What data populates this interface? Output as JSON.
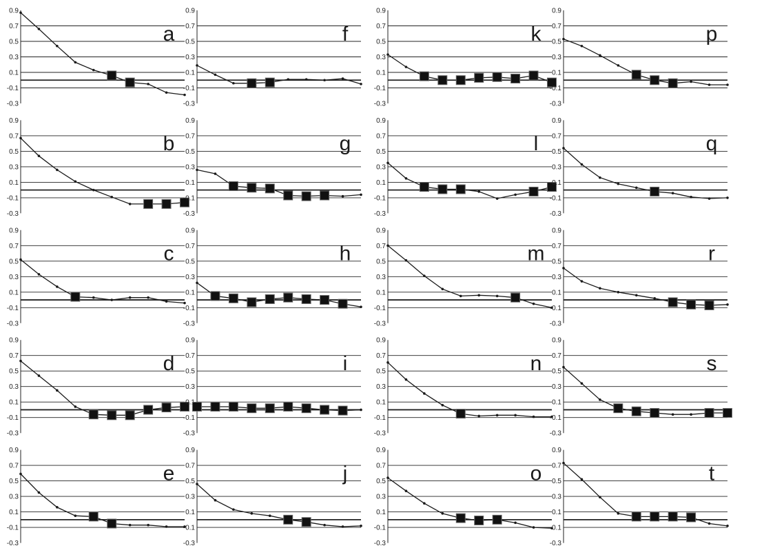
{
  "chart_data": {
    "type": "line",
    "ylim": [
      -0.3,
      0.9
    ],
    "yticks": [
      0.9,
      0.7,
      0.5,
      0.3,
      0.1,
      -0.1,
      -0.3
    ],
    "ytick_labels": [
      "0.9",
      "0.7",
      "0.5",
      "0.3",
      "0.1",
      "-0.1",
      "-0.3"
    ],
    "grid": true,
    "colors": {
      "line": "#1a1a1a",
      "marker": "#111111",
      "grid": "#222222"
    },
    "panels": [
      {
        "label": "a",
        "values": [
          0.87,
          0.66,
          0.44,
          0.23,
          0.13,
          0.06,
          -0.03,
          -0.05,
          -0.16,
          -0.19
        ],
        "highlighted": [
          5,
          6
        ]
      },
      {
        "label": "b",
        "values": [
          0.67,
          0.44,
          0.26,
          0.11,
          0.0,
          -0.09,
          -0.18,
          -0.18,
          -0.18,
          -0.16
        ],
        "highlighted": [
          7,
          8,
          9
        ]
      },
      {
        "label": "c",
        "values": [
          0.52,
          0.33,
          0.17,
          0.04,
          0.03,
          0.0,
          0.03,
          0.03,
          -0.02,
          -0.04
        ],
        "highlighted": [
          3
        ]
      },
      {
        "label": "d",
        "values": [
          0.63,
          0.44,
          0.25,
          0.04,
          -0.06,
          -0.07,
          -0.07,
          0.0,
          0.03,
          0.04
        ],
        "highlighted": [
          4,
          5,
          6,
          7,
          8,
          9
        ]
      },
      {
        "label": "e",
        "values": [
          0.59,
          0.35,
          0.16,
          0.05,
          0.04,
          -0.05,
          -0.07,
          -0.07,
          -0.09,
          -0.09
        ],
        "highlighted": [
          4,
          5
        ]
      },
      {
        "label": "f",
        "values": [
          0.19,
          0.07,
          -0.04,
          -0.04,
          -0.03,
          0.01,
          0.01,
          0.0,
          0.02,
          -0.05
        ],
        "highlighted": [
          3,
          4
        ]
      },
      {
        "label": "g",
        "values": [
          0.26,
          0.21,
          0.05,
          0.03,
          0.02,
          -0.07,
          -0.08,
          -0.07,
          -0.08,
          -0.06
        ],
        "highlighted": [
          2,
          3,
          4,
          5,
          6,
          7
        ]
      },
      {
        "label": "h",
        "values": [
          0.22,
          0.05,
          0.02,
          -0.03,
          0.01,
          0.03,
          0.01,
          0.0,
          -0.05,
          -0.09
        ],
        "highlighted": [
          1,
          2,
          3,
          4,
          5,
          6,
          7,
          8
        ]
      },
      {
        "label": "i",
        "values": [
          0.04,
          0.04,
          0.04,
          0.02,
          0.02,
          0.04,
          0.02,
          0.0,
          -0.01,
          0.0
        ],
        "highlighted": [
          0,
          1,
          2,
          3,
          4,
          5,
          6,
          7,
          8
        ]
      },
      {
        "label": "j",
        "values": [
          0.46,
          0.25,
          0.13,
          0.08,
          0.05,
          0.0,
          -0.03,
          -0.07,
          -0.09,
          -0.08
        ],
        "highlighted": [
          5,
          6
        ]
      },
      {
        "label": "k",
        "values": [
          0.33,
          0.17,
          0.05,
          0.0,
          0.0,
          0.03,
          0.04,
          0.02,
          0.06,
          -0.03
        ],
        "highlighted": [
          2,
          3,
          4,
          5,
          6,
          7,
          8,
          9
        ]
      },
      {
        "label": "l",
        "values": [
          0.35,
          0.15,
          0.04,
          0.01,
          0.01,
          -0.02,
          -0.11,
          -0.06,
          -0.02,
          0.04
        ],
        "highlighted": [
          2,
          3,
          4,
          8,
          9
        ]
      },
      {
        "label": "m",
        "values": [
          0.7,
          0.51,
          0.31,
          0.14,
          0.05,
          0.06,
          0.05,
          0.03,
          -0.05,
          -0.1
        ],
        "highlighted": [
          7
        ]
      },
      {
        "label": "n",
        "values": [
          0.61,
          0.39,
          0.21,
          0.06,
          -0.05,
          -0.08,
          -0.07,
          -0.07,
          -0.09,
          -0.09
        ],
        "highlighted": [
          4
        ]
      },
      {
        "label": "o",
        "values": [
          0.54,
          0.37,
          0.21,
          0.08,
          0.02,
          -0.01,
          0.0,
          -0.04,
          -0.1,
          -0.11
        ],
        "highlighted": [
          4,
          5,
          6
        ]
      },
      {
        "label": "p",
        "values": [
          0.53,
          0.44,
          0.32,
          0.19,
          0.07,
          0.0,
          -0.04,
          -0.02,
          -0.06,
          -0.06
        ],
        "highlighted": [
          4,
          5,
          6
        ]
      },
      {
        "label": "q",
        "values": [
          0.54,
          0.33,
          0.16,
          0.08,
          0.03,
          -0.02,
          -0.04,
          -0.09,
          -0.11,
          -0.1
        ],
        "highlighted": [
          5
        ]
      },
      {
        "label": "r",
        "values": [
          0.41,
          0.24,
          0.15,
          0.1,
          0.06,
          0.02,
          -0.03,
          -0.06,
          -0.07,
          -0.06
        ],
        "highlighted": [
          6,
          7,
          8
        ]
      },
      {
        "label": "s",
        "values": [
          0.55,
          0.34,
          0.13,
          0.02,
          -0.02,
          -0.04,
          -0.06,
          -0.06,
          -0.04,
          -0.04
        ],
        "highlighted": [
          3,
          4,
          5,
          8,
          9
        ]
      },
      {
        "label": "t",
        "values": [
          0.73,
          0.52,
          0.29,
          0.08,
          0.04,
          0.04,
          0.04,
          0.03,
          -0.05,
          -0.08
        ],
        "highlighted": [
          4,
          5,
          6,
          7
        ]
      }
    ]
  }
}
